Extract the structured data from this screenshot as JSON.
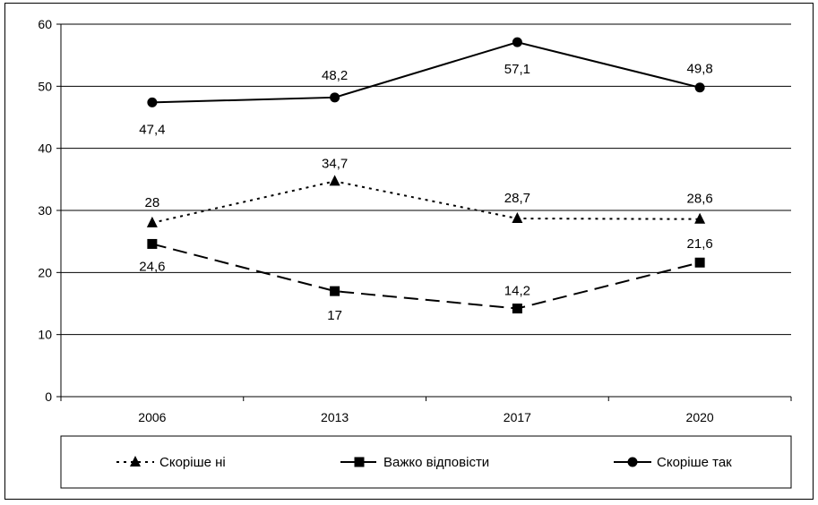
{
  "chart_data": {
    "type": "line",
    "categories": [
      "2006",
      "2013",
      "2017",
      "2020"
    ],
    "ylim": [
      0,
      60
    ],
    "yticks": [
      0,
      10,
      20,
      30,
      40,
      50,
      60
    ],
    "grid": true,
    "legend_position": "bottom",
    "series": [
      {
        "name": "Скоріше ні",
        "values": [
          28,
          34.7,
          28.7,
          28.6
        ],
        "labels": [
          "28",
          "34,7",
          "28,7",
          "28,6"
        ],
        "marker": "triangle",
        "line_style": "dotted",
        "color": "#000000"
      },
      {
        "name": "Важко відповісти",
        "values": [
          24.6,
          17,
          14.2,
          21.6
        ],
        "labels": [
          "24,6",
          "17",
          "14,2",
          "21,6"
        ],
        "marker": "square",
        "line_style": "dashed",
        "color": "#000000"
      },
      {
        "name": "Скоріше так",
        "values": [
          47.4,
          48.2,
          57.1,
          49.8
        ],
        "labels": [
          "47,4",
          "48,2",
          "57,1",
          "49,8"
        ],
        "marker": "circle",
        "line_style": "solid",
        "color": "#000000"
      }
    ]
  }
}
